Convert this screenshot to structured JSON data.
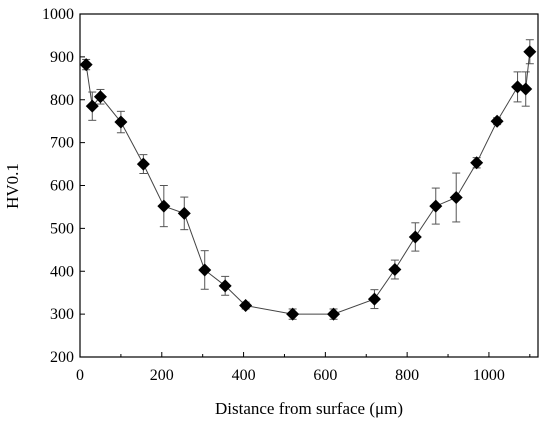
{
  "chart_data": {
    "type": "scatter",
    "xlabel": "Distance from surface (μm)",
    "ylabel": "HV0.1",
    "xlim": [
      0,
      1120
    ],
    "ylim": [
      200,
      1000
    ],
    "x_ticks": [
      0,
      200,
      400,
      600,
      800,
      1000
    ],
    "y_ticks": [
      200,
      300,
      400,
      500,
      600,
      700,
      800,
      900,
      1000
    ],
    "x_tick_labels": [
      "0",
      "200",
      "400",
      "600",
      "800",
      "1000"
    ],
    "y_tick_labels": [
      "200",
      "300",
      "400",
      "500",
      "600",
      "700",
      "800",
      "900",
      "1000"
    ],
    "grid": false,
    "marker": "diamond",
    "connected": true,
    "series": [
      {
        "points": [
          {
            "x": 15,
            "y": 882,
            "err": 12
          },
          {
            "x": 30,
            "y": 785,
            "err": 33
          },
          {
            "x": 50,
            "y": 807,
            "err": 17
          },
          {
            "x": 100,
            "y": 748,
            "err": 25
          },
          {
            "x": 155,
            "y": 650,
            "err": 22
          },
          {
            "x": 205,
            "y": 552,
            "err": 48
          },
          {
            "x": 255,
            "y": 535,
            "err": 38
          },
          {
            "x": 305,
            "y": 403,
            "err": 45
          },
          {
            "x": 355,
            "y": 366,
            "err": 22
          },
          {
            "x": 405,
            "y": 320,
            "err": 8
          },
          {
            "x": 520,
            "y": 300,
            "err": 12
          },
          {
            "x": 620,
            "y": 300,
            "err": 12
          },
          {
            "x": 720,
            "y": 335,
            "err": 22
          },
          {
            "x": 770,
            "y": 404,
            "err": 22
          },
          {
            "x": 820,
            "y": 480,
            "err": 33
          },
          {
            "x": 870,
            "y": 552,
            "err": 42
          },
          {
            "x": 920,
            "y": 572,
            "err": 57
          },
          {
            "x": 970,
            "y": 653,
            "err": 12
          },
          {
            "x": 1020,
            "y": 750,
            "err": 8
          },
          {
            "x": 1070,
            "y": 830,
            "err": 35
          },
          {
            "x": 1090,
            "y": 825,
            "err": 40
          },
          {
            "x": 1100,
            "y": 912,
            "err": 28
          }
        ]
      }
    ]
  }
}
